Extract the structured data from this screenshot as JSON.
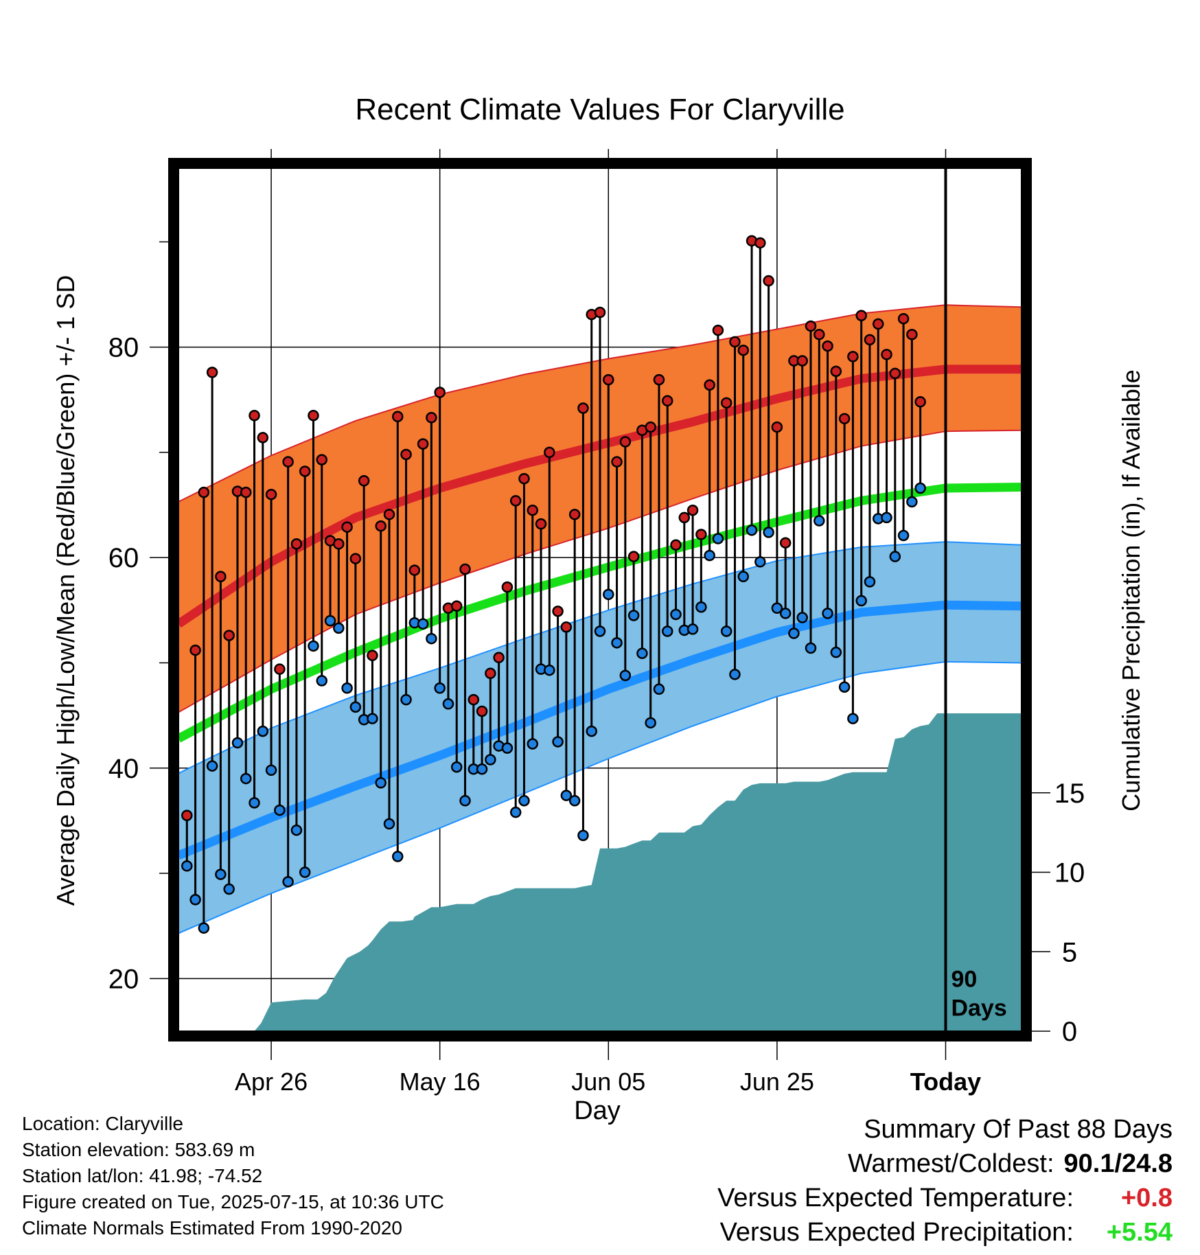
{
  "chart_data": {
    "type": "line",
    "title": "Recent Climate Values For Claryville",
    "xlabel": "Day",
    "ylabel": "Average Daily High/Low/Mean (Red/Blue/Green) +/- 1 SD",
    "y2label": "Cumulative Precipitation (in), If Available",
    "x_ticks": [
      {
        "day": 20,
        "label": "Apr 26"
      },
      {
        "day": 40,
        "label": "May 16"
      },
      {
        "day": 60,
        "label": "Jun 05"
      },
      {
        "day": 80,
        "label": "Jun 25"
      },
      {
        "day": 100,
        "label": "Today"
      }
    ],
    "y_ticks": [
      20,
      40,
      60,
      80
    ],
    "y_minor_ticks": [
      30,
      50,
      70,
      90
    ],
    "y2_ticks": [
      0,
      5,
      10,
      15
    ],
    "xlim": [
      9,
      109
    ],
    "ylim": [
      15,
      97
    ],
    "y2lim": [
      0,
      54.3
    ],
    "today_marker": {
      "day": 100,
      "label_line1": "90",
      "label_line2": "Days"
    },
    "grid": true,
    "normals": {
      "days": [
        9,
        20,
        30,
        40,
        50,
        60,
        70,
        80,
        90,
        100,
        109
      ],
      "high_mean": [
        53.7,
        59.6,
        63.8,
        66.6,
        68.9,
        70.9,
        72.9,
        75.1,
        77.0,
        77.9,
        77.9
      ],
      "high_plus_sd": [
        65.3,
        69.7,
        73.0,
        75.5,
        77.4,
        78.9,
        80.2,
        81.7,
        83.2,
        84.0,
        83.8
      ],
      "high_minus_sd": [
        45.3,
        50.3,
        54.6,
        57.6,
        60.3,
        62.8,
        65.6,
        68.3,
        70.6,
        72.0,
        72.1
      ],
      "mean": [
        42.8,
        47.5,
        51.0,
        54.2,
        56.8,
        59.1,
        61.3,
        63.4,
        65.4,
        66.6,
        66.7
      ],
      "low_mean": [
        31.7,
        35.3,
        38.3,
        41.2,
        44.3,
        47.5,
        50.3,
        52.9,
        54.8,
        55.5,
        55.4
      ],
      "low_plus_sd": [
        39.5,
        43.8,
        46.9,
        49.5,
        52.3,
        55.0,
        57.5,
        59.7,
        61.0,
        61.5,
        61.2
      ],
      "low_minus_sd": [
        24.3,
        28.1,
        31.2,
        34.3,
        37.6,
        40.9,
        44.0,
        46.8,
        49.0,
        50.1,
        50.0
      ]
    },
    "precip_cumulative": {
      "days": [
        9,
        18,
        18.8,
        20,
        22,
        24,
        25.5,
        26.5,
        27.5,
        29,
        30.5,
        31.5,
        32,
        33,
        34,
        35.5,
        36.8,
        37,
        38,
        39,
        40,
        41,
        42,
        43,
        44,
        45,
        46,
        47,
        48,
        49,
        50,
        51,
        52,
        53,
        54,
        55,
        56,
        57,
        58,
        59,
        60,
        61,
        62,
        63,
        64,
        65,
        66,
        67,
        68,
        69,
        70,
        71,
        72,
        73,
        74,
        75,
        76,
        77,
        78,
        79,
        80,
        81,
        82,
        83,
        84,
        85,
        86,
        87,
        88,
        89,
        90,
        91,
        92,
        93,
        94,
        95,
        96,
        97,
        98,
        99,
        100,
        109
      ],
      "values": [
        0,
        0,
        0.5,
        1.8,
        1.9,
        2.0,
        2.0,
        2.4,
        3.4,
        4.6,
        5.0,
        5.4,
        5.7,
        6.4,
        6.9,
        6.9,
        7.0,
        7.2,
        7.5,
        7.8,
        7.8,
        7.9,
        8.0,
        8.0,
        8.0,
        8.3,
        8.5,
        8.6,
        8.8,
        9.0,
        9.0,
        9.0,
        9.0,
        9.0,
        9.0,
        9.0,
        9.0,
        9.1,
        9.2,
        11.5,
        11.5,
        11.5,
        11.6,
        11.8,
        12.0,
        12.0,
        12.5,
        12.5,
        12.5,
        12.5,
        12.9,
        13.0,
        13.6,
        14.1,
        14.5,
        14.5,
        15.2,
        15.5,
        15.6,
        15.6,
        15.6,
        15.6,
        15.7,
        15.7,
        15.7,
        15.7,
        15.8,
        16.0,
        16.2,
        16.3,
        16.3,
        16.3,
        16.3,
        16.3,
        18.4,
        18.5,
        19.0,
        19.2,
        19.3,
        20.0,
        20.0,
        20.0
      ]
    },
    "daily": {
      "start_day": 10,
      "high": [
        35.5,
        51.2,
        66.2,
        77.6,
        58.2,
        52.6,
        66.3,
        66.2,
        73.5,
        71.4,
        66.0,
        49.4,
        69.1,
        61.3,
        68.2,
        73.5,
        69.3,
        61.6,
        61.3,
        62.9,
        59.9,
        67.3,
        50.7,
        63.0,
        64.1,
        73.4,
        69.8,
        58.8,
        70.8,
        73.3,
        75.7,
        55.2,
        55.4,
        58.9,
        46.5,
        45.4,
        49.0,
        50.5,
        57.2,
        65.4,
        67.5,
        64.5,
        63.2,
        70.0,
        54.9,
        53.4,
        64.1,
        74.2,
        83.1,
        83.3,
        76.9,
        69.1,
        71.0,
        60.1,
        72.1,
        72.4,
        76.9,
        74.9,
        61.2,
        63.8,
        64.5,
        62.2,
        76.4,
        81.6,
        74.7,
        80.5,
        79.7,
        90.1,
        89.9,
        86.3,
        72.4,
        61.4,
        78.7,
        78.7,
        82.0,
        81.2,
        80.1,
        77.7,
        73.2,
        79.1,
        83.0,
        80.7,
        82.2,
        79.3,
        77.5,
        82.7,
        81.2,
        74.8
      ],
      "low": [
        30.7,
        27.5,
        24.8,
        40.2,
        29.9,
        28.5,
        42.4,
        39.0,
        36.7,
        43.5,
        39.8,
        36.0,
        29.2,
        34.1,
        30.1,
        51.6,
        48.3,
        54.0,
        53.3,
        47.6,
        45.8,
        44.6,
        44.7,
        38.6,
        34.7,
        31.6,
        46.5,
        53.8,
        53.7,
        52.3,
        47.6,
        46.1,
        40.1,
        36.9,
        39.9,
        39.9,
        40.8,
        42.1,
        41.9,
        35.8,
        36.9,
        42.3,
        49.4,
        49.3,
        42.5,
        37.4,
        36.9,
        33.6,
        43.5,
        53.0,
        56.5,
        51.9,
        48.8,
        54.5,
        50.9,
        44.3,
        47.5,
        53.0,
        54.6,
        53.1,
        53.2,
        55.3,
        60.2,
        61.8,
        53.0,
        48.9,
        58.2,
        62.6,
        59.6,
        62.4,
        55.2,
        54.7,
        52.8,
        54.3,
        51.4,
        63.5,
        54.7,
        51.0,
        47.7,
        44.7,
        55.9,
        57.7,
        63.7,
        63.8,
        60.1,
        62.1,
        65.3,
        66.6
      ]
    }
  },
  "info": {
    "location": "Location: Claryville",
    "elevation": "Station elevation: 583.69 m",
    "latlon": "Station lat/lon: 41.98; -74.52",
    "created": "Figure created on Tue, 2025-07-15, at 10:36 UTC",
    "normals_note": "Climate Normals Estimated From 1990-2020"
  },
  "summary": {
    "title": "Summary Of Past 88 Days",
    "warm_cold_label": "Warmest/Coldest:",
    "warm_cold_value": "90.1/24.8",
    "temp_label": "Versus Expected Temperature:",
    "temp_value": "+0.8",
    "precip_label": "Versus Expected Precipitation:",
    "precip_value": "+5.54"
  },
  "colors": {
    "high_band": "#f47a32",
    "high_line": "#d8232a",
    "mean_line": "#18e018",
    "low_band": "#7fbfe8",
    "low_line": "#1e90ff",
    "precip": "#4a9aa4",
    "high_dot": "#cc2020",
    "low_dot": "#2080e0"
  }
}
